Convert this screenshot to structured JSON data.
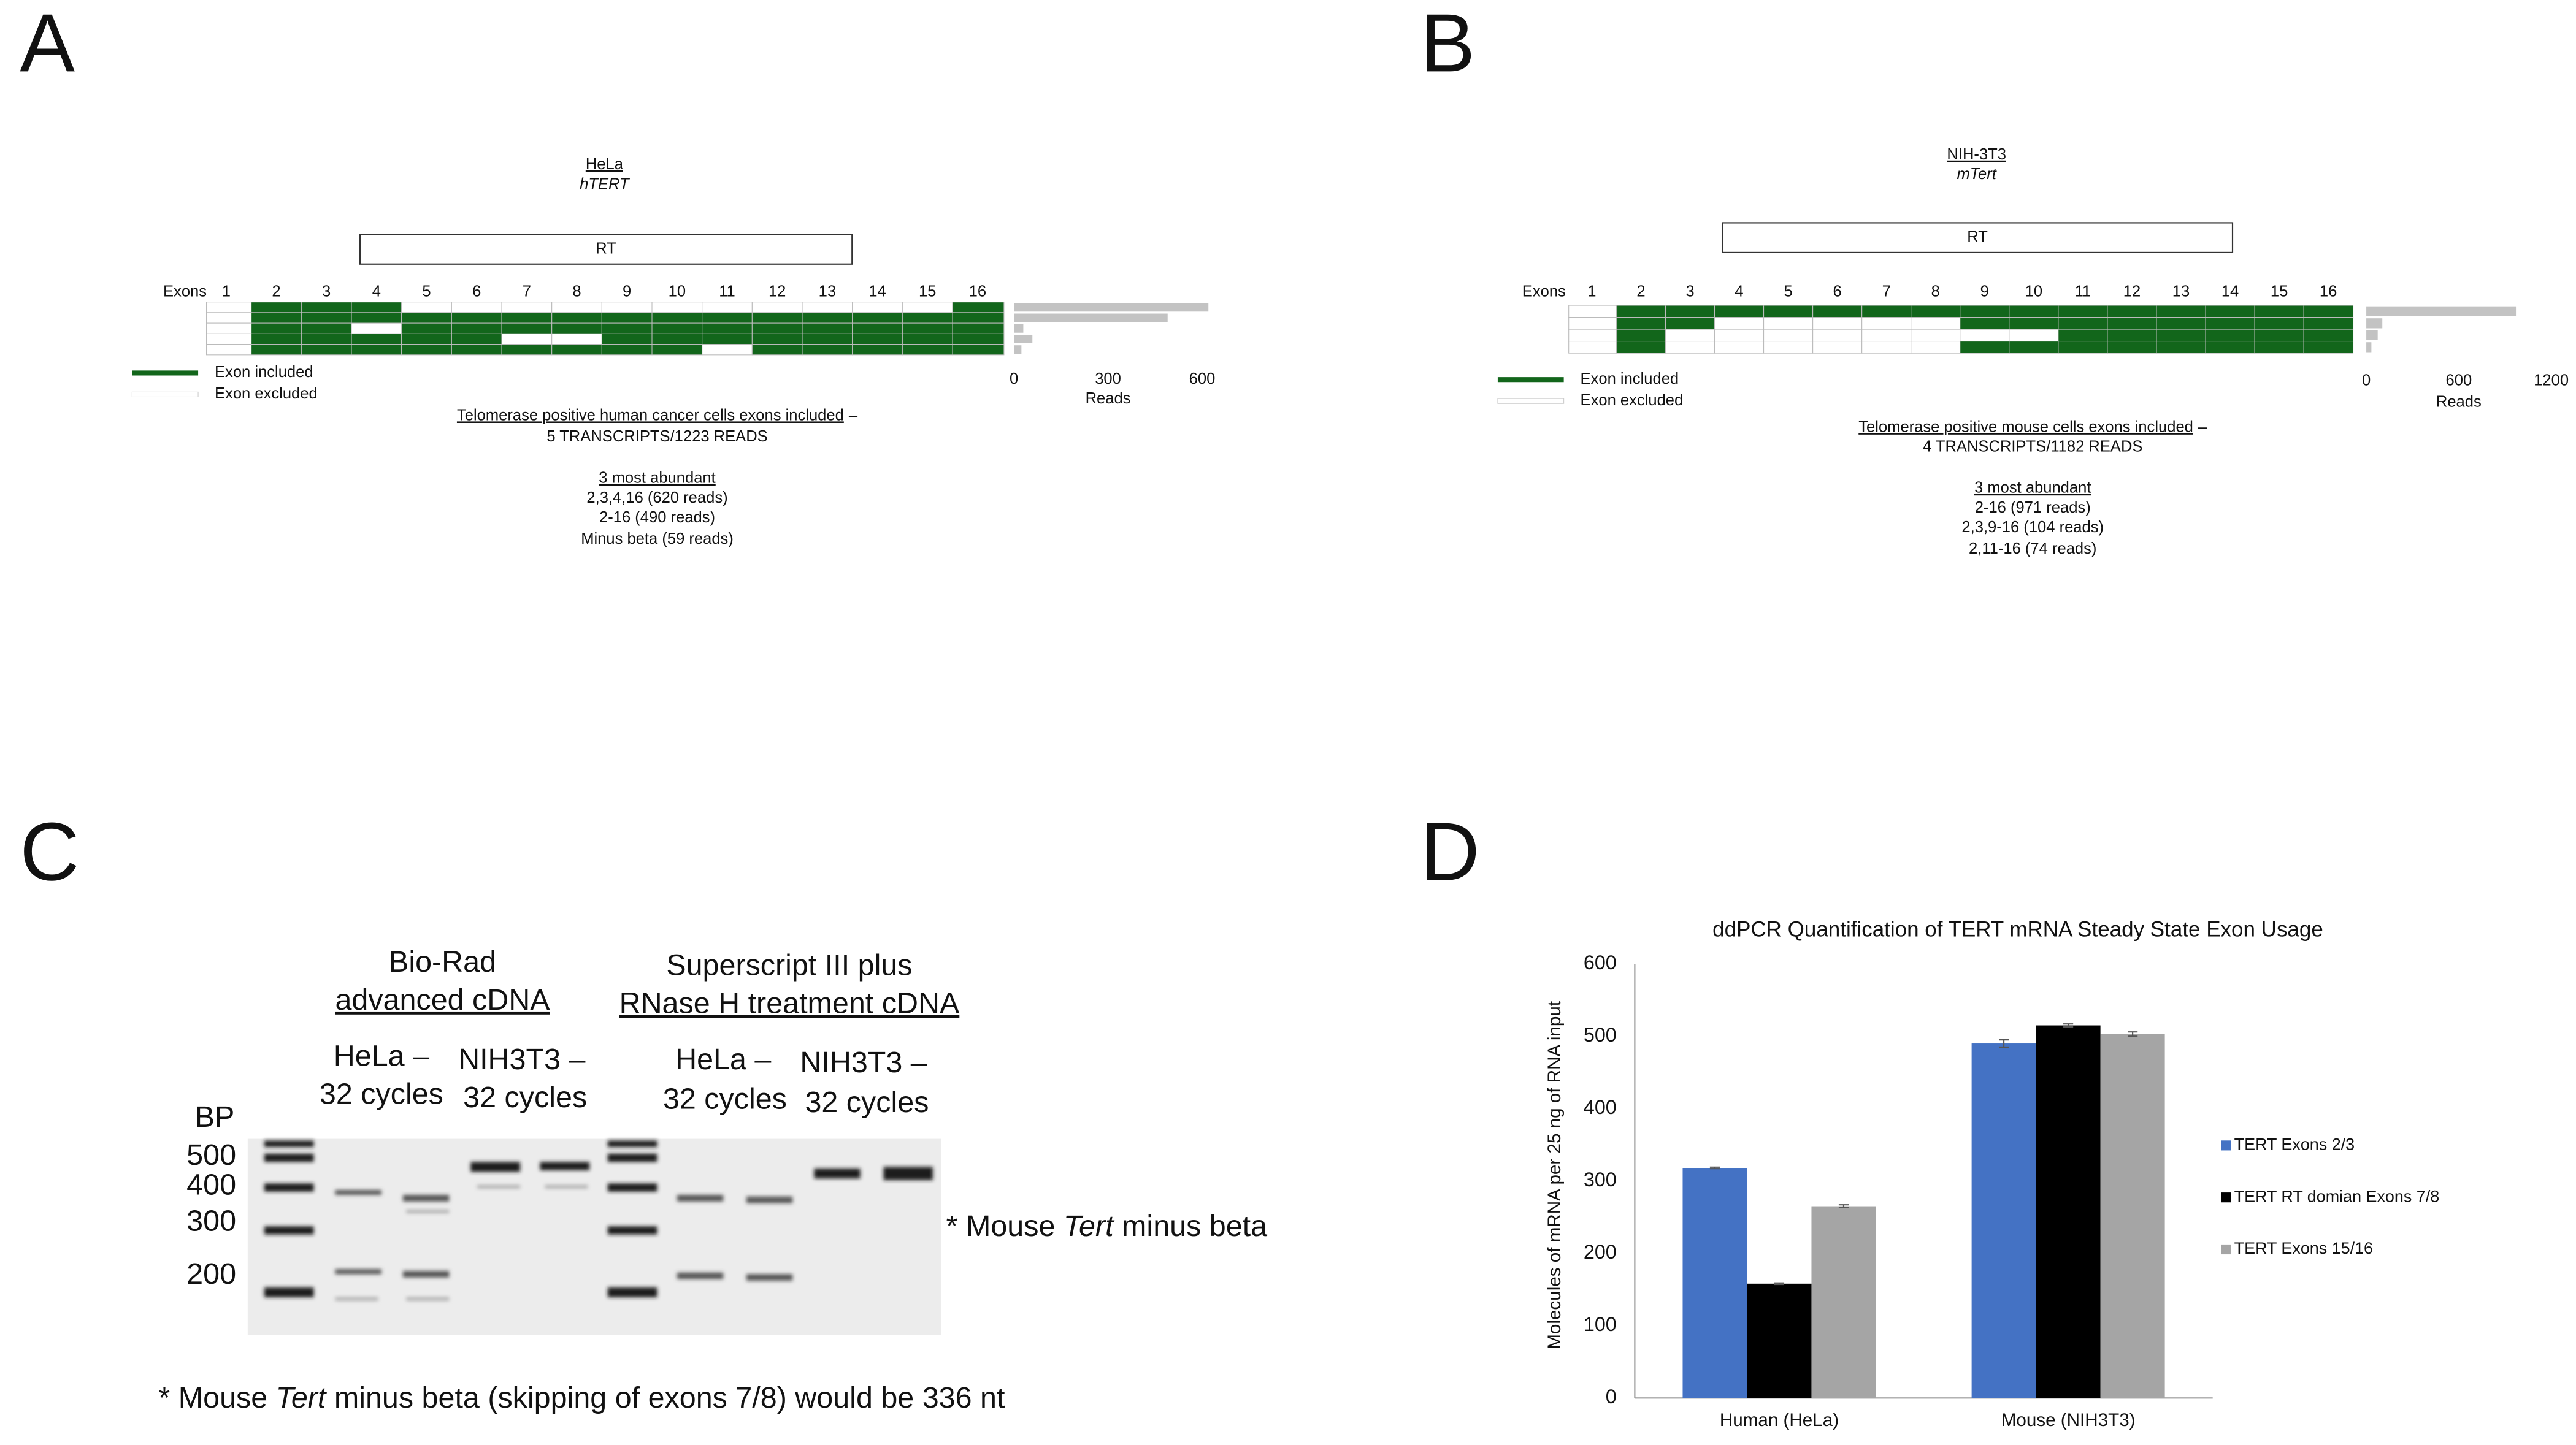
{
  "panel_a": {
    "label": "A",
    "cell_line": "HeLa",
    "gene": "hTERT",
    "domain": "RT",
    "exons_label": "Exons",
    "exons": [
      1,
      2,
      3,
      4,
      5,
      6,
      7,
      8,
      9,
      10,
      11,
      12,
      13,
      14,
      15,
      16
    ],
    "transcripts": [
      {
        "included": [
          false,
          true,
          true,
          true,
          false,
          false,
          false,
          false,
          false,
          false,
          false,
          false,
          false,
          false,
          false,
          true
        ],
        "reads": 620
      },
      {
        "included": [
          false,
          true,
          true,
          true,
          true,
          true,
          true,
          true,
          true,
          true,
          true,
          true,
          true,
          true,
          true,
          true
        ],
        "reads": 490
      },
      {
        "included": [
          false,
          true,
          true,
          false,
          true,
          true,
          true,
          true,
          true,
          true,
          true,
          true,
          true,
          true,
          true,
          true
        ],
        "reads": 30
      },
      {
        "included": [
          false,
          true,
          true,
          true,
          true,
          true,
          false,
          false,
          true,
          true,
          true,
          true,
          true,
          true,
          true,
          true
        ],
        "reads": 59
      },
      {
        "included": [
          false,
          true,
          true,
          true,
          true,
          true,
          true,
          true,
          true,
          true,
          false,
          true,
          true,
          true,
          true,
          true
        ],
        "reads": 24
      }
    ],
    "colors": {
      "included": "#12661b",
      "excluded": "#ffffff",
      "reads": "#c3c3c3"
    },
    "reads_axis": {
      "label": "Reads",
      "xlim": [
        0,
        600
      ],
      "xticks": [
        0,
        300,
        600
      ]
    },
    "legend": [
      "Exon included",
      "Exon excluded"
    ],
    "summary": {
      "title": "Telomerase positive human cancer cells exons included",
      "dash": "–",
      "count": "5 TRANSCRIPTS/1223 READS"
    },
    "abundant": {
      "title": "3 most abundant",
      "items": [
        "2,3,4,16 (620 reads)",
        "2-16 (490 reads)",
        "Minus beta (59 reads)"
      ]
    }
  },
  "panel_b": {
    "label": "B",
    "cell_line": "NIH-3T3",
    "gene": "mTert",
    "domain": "RT",
    "exons_label": "Exons",
    "exons": [
      1,
      2,
      3,
      4,
      5,
      6,
      7,
      8,
      9,
      10,
      11,
      12,
      13,
      14,
      15,
      16
    ],
    "transcripts": [
      {
        "included": [
          false,
          true,
          true,
          true,
          true,
          true,
          true,
          true,
          true,
          true,
          true,
          true,
          true,
          true,
          true,
          true
        ],
        "reads": 971
      },
      {
        "included": [
          false,
          true,
          true,
          false,
          false,
          false,
          false,
          false,
          true,
          true,
          true,
          true,
          true,
          true,
          true,
          true
        ],
        "reads": 104
      },
      {
        "included": [
          false,
          true,
          false,
          false,
          false,
          false,
          false,
          false,
          false,
          false,
          true,
          true,
          true,
          true,
          true,
          true
        ],
        "reads": 74
      },
      {
        "included": [
          false,
          true,
          false,
          false,
          false,
          false,
          false,
          false,
          true,
          true,
          true,
          true,
          true,
          true,
          true,
          true
        ],
        "reads": 33
      }
    ],
    "colors": {
      "included": "#12661b",
      "excluded": "#ffffff",
      "reads": "#c3c3c3"
    },
    "reads_axis": {
      "label": "Reads",
      "xlim": [
        0,
        1200
      ],
      "xticks": [
        0,
        600,
        1200
      ]
    },
    "legend": [
      "Exon included",
      "Exon excluded"
    ],
    "summary": {
      "title": "Telomerase positive mouse cells exons included",
      "dash": "–",
      "count": "4 TRANSCRIPTS/1182 READS"
    },
    "abundant": {
      "title": "3 most abundant",
      "items": [
        "2-16 (971 reads)",
        "2,3,9-16 (104 reads)",
        "2,11-16 (74 reads)"
      ]
    }
  },
  "panel_c": {
    "label": "C",
    "groups": [
      {
        "title": "Bio-Rad",
        "subtitle": "advanced cDNA"
      },
      {
        "title": "Superscript III plus",
        "subtitle": "RNase H treatment cDNA"
      }
    ],
    "lanes": [
      {
        "name": "HeLa –",
        "cycles": "32 cycles"
      },
      {
        "name": "NIH3T3 –",
        "cycles": "32 cycles"
      },
      {
        "name": "HeLa –",
        "cycles": "32 cycles"
      },
      {
        "name": "NIH3T3 –",
        "cycles": "32 cycles"
      }
    ],
    "bp_label": "BP",
    "markers": [
      500,
      400,
      300,
      200
    ],
    "annotation": {
      "pre": "* Mouse",
      "italic": "Tert",
      "post": "minus beta"
    },
    "footnote": {
      "pre": "* Mouse",
      "italic": "Tert",
      "post": "minus beta (skipping of exons 7/8) would be 336 nt"
    }
  },
  "panel_d_label": "D",
  "chart_data": {
    "type": "bar",
    "title": "ddPCR Quantification of TERT mRNA Steady State Exon Usage",
    "y_label": "Molecules of mRNA per 25 ng of RNA input",
    "categories": [
      "Human (HeLa)",
      "Mouse (NIH3T3)"
    ],
    "series": [
      {
        "name": "TERT Exons 2/3",
        "color": "#4472c4",
        "values": [
          318,
          490
        ],
        "errors": [
          1,
          5
        ]
      },
      {
        "name": "TERT RT domian Exons 7/8",
        "color": "#000000",
        "values": [
          158,
          515
        ],
        "errors": [
          1,
          2
        ]
      },
      {
        "name": "TERT Exons 15/16",
        "color": "#a5a5a5",
        "values": [
          265,
          503
        ],
        "errors": [
          2,
          3
        ]
      }
    ],
    "ylim": [
      0,
      600
    ],
    "yticks": [
      0,
      100,
      200,
      300,
      400,
      500,
      600
    ],
    "legend": "right"
  }
}
